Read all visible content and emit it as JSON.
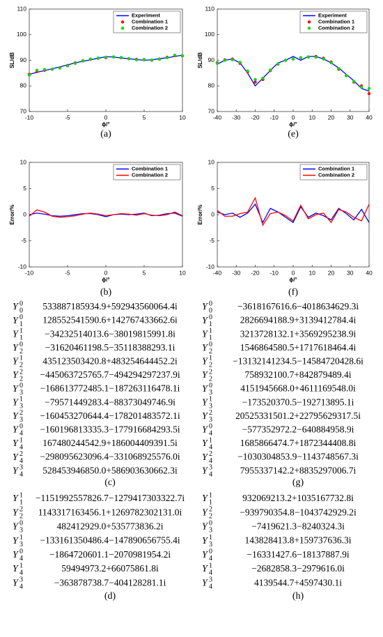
{
  "chart_data": [
    {
      "type": "line",
      "caption": "(a)",
      "xlabel": "ϕ/°",
      "ylabel": "SL/dB",
      "xlim": [
        -10,
        10
      ],
      "ylim": [
        70,
        110
      ],
      "xticks": [
        -10,
        -5,
        0,
        5,
        10
      ],
      "yticks": [
        70,
        80,
        90,
        100,
        110
      ],
      "grid": false,
      "legend": "upper right",
      "x": [
        -10,
        -9,
        -8,
        -7,
        -6,
        -5,
        -4,
        -3,
        -2,
        -1,
        0,
        1,
        2,
        3,
        4,
        5,
        6,
        7,
        8,
        9,
        10
      ],
      "series": [
        {
          "name": "Experiment",
          "color": "#0000ff",
          "style": "line",
          "values": [
            84.5,
            85.3,
            86.0,
            86.7,
            87.4,
            88.2,
            89.0,
            89.6,
            90.2,
            90.8,
            91.4,
            91.3,
            90.9,
            90.6,
            90.3,
            90.0,
            90.2,
            90.6,
            91.0,
            91.5,
            92.0
          ]
        },
        {
          "name": "Combination 1",
          "color": "#ff0000",
          "style": "markers",
          "values": [
            84.5,
            85.6,
            86.1,
            86.5,
            87.1,
            88.0,
            89.0,
            89.8,
            90.4,
            90.8,
            91.0,
            91.3,
            91.0,
            90.6,
            90.4,
            90.3,
            90.0,
            90.5,
            91.2,
            91.8,
            91.7
          ]
        },
        {
          "name": "Combination 2",
          "color": "#00dd00",
          "style": "markers",
          "values": [
            84.2,
            86.1,
            86.4,
            86.5,
            87.0,
            87.8,
            88.8,
            89.7,
            90.5,
            90.9,
            91.2,
            91.3,
            91.1,
            90.7,
            90.2,
            90.2,
            90.1,
            90.4,
            91.0,
            92.0,
            91.8
          ]
        }
      ]
    },
    {
      "type": "line",
      "caption": "(e)",
      "xlabel": "ϕ/°",
      "ylabel": "SL/dB",
      "xlim": [
        -40,
        40
      ],
      "ylim": [
        70,
        110
      ],
      "xticks": [
        -40,
        -30,
        -20,
        -10,
        0,
        10,
        20,
        30,
        40
      ],
      "yticks": [
        70,
        80,
        90,
        100,
        110
      ],
      "grid": false,
      "legend": "upper right",
      "x": [
        -40,
        -36,
        -32,
        -28,
        -24,
        -20,
        -16,
        -12,
        -8,
        -4,
        0,
        4,
        8,
        12,
        16,
        20,
        24,
        28,
        32,
        36,
        40
      ],
      "series": [
        {
          "name": "Experiment",
          "color": "#0000ff",
          "style": "line",
          "values": [
            88.5,
            90.0,
            90.5,
            89.0,
            85.0,
            80.0,
            83.0,
            86.0,
            89.0,
            90.0,
            91.5,
            90.0,
            91.5,
            91.5,
            90.5,
            89.0,
            87.0,
            84.5,
            82.0,
            79.0,
            78.0
          ]
        },
        {
          "name": "Combination 1",
          "color": "#ff0000",
          "style": "markers",
          "values": [
            89.0,
            90.2,
            90.5,
            88.8,
            85.5,
            81.5,
            82.5,
            86.0,
            88.5,
            90.0,
            90.5,
            91.0,
            91.3,
            91.5,
            90.8,
            89.3,
            86.5,
            84.0,
            81.5,
            80.0,
            77.0
          ]
        },
        {
          "name": "Combination 2",
          "color": "#00dd00",
          "style": "markers",
          "values": [
            88.8,
            90.0,
            90.2,
            89.2,
            85.8,
            82.5,
            83.0,
            86.2,
            88.6,
            90.0,
            90.5,
            91.0,
            91.3,
            91.2,
            90.5,
            89.0,
            86.8,
            84.0,
            81.8,
            79.5,
            79.0
          ]
        }
      ]
    },
    {
      "type": "line",
      "caption": "(b)",
      "xlabel": "ϕ/°",
      "ylabel": "Error/%",
      "xlim": [
        -10,
        10
      ],
      "ylim": [
        -10,
        10
      ],
      "xticks": [
        -10,
        -5,
        0,
        5,
        10
      ],
      "yticks": [
        -10,
        -5,
        0,
        5,
        10
      ],
      "grid": false,
      "legend": "upper right",
      "x": [
        -10,
        -9,
        -8,
        -7,
        -6,
        -5,
        -4,
        -3,
        -2,
        -1,
        0,
        1,
        2,
        3,
        4,
        5,
        6,
        7,
        8,
        9,
        10
      ],
      "series": [
        {
          "name": "Combination 1",
          "color": "#0000ff",
          "style": "line",
          "values": [
            0,
            0.3,
            0.1,
            -0.2,
            -0.3,
            -0.2,
            0,
            0.2,
            0.2,
            0,
            -0.4,
            0,
            0.1,
            0,
            0.1,
            0.3,
            -0.2,
            -0.1,
            0.2,
            0.3,
            -0.3
          ]
        },
        {
          "name": "Combination 2",
          "color": "#ff0000",
          "style": "line",
          "values": [
            -0.3,
            0.9,
            0.5,
            -0.3,
            -0.5,
            -0.4,
            -0.2,
            0.1,
            0.3,
            0.1,
            -0.2,
            0,
            0.2,
            0.1,
            -0.1,
            0.2,
            -0.1,
            -0.2,
            0,
            0.5,
            -0.2
          ]
        }
      ]
    },
    {
      "type": "line",
      "caption": "(f)",
      "xlabel": "ϕ/°",
      "ylabel": "Error/%",
      "xlim": [
        -40,
        40
      ],
      "ylim": [
        -10,
        10
      ],
      "xticks": [
        -40,
        -30,
        -20,
        -10,
        0,
        10,
        20,
        30,
        40
      ],
      "yticks": [
        -10,
        -5,
        0,
        5,
        10
      ],
      "grid": false,
      "legend": "upper right",
      "x": [
        -40,
        -36,
        -32,
        -28,
        -24,
        -20,
        -16,
        -12,
        -8,
        -4,
        0,
        4,
        8,
        12,
        16,
        20,
        24,
        28,
        32,
        36,
        40
      ],
      "series": [
        {
          "name": "Combination 1",
          "color": "#0000ff",
          "style": "line",
          "values": [
            0.5,
            0,
            0.3,
            -0.5,
            0.3,
            2.0,
            -1.5,
            1.2,
            0.5,
            -0.5,
            -1.5,
            1.5,
            -0.5,
            0.3,
            -0.2,
            -1.0,
            1.2,
            0.2,
            -1.0,
            1.0,
            -1.5
          ]
        },
        {
          "name": "Combination 2",
          "color": "#ff0000",
          "style": "line",
          "values": [
            0.8,
            -0.3,
            -0.3,
            0.2,
            0.5,
            3.2,
            -2.0,
            0.2,
            0.5,
            -0.2,
            -1.2,
            1.8,
            -0.8,
            0,
            0.3,
            -1.5,
            1.0,
            0.5,
            -0.5,
            -1.2,
            2.0
          ]
        }
      ]
    }
  ],
  "tables": [
    {
      "caption": "(c)",
      "rows": [
        {
          "symbol": "Y",
          "sub": "0",
          "sup": "0",
          "value": "533887185934.9+592943560064.4i"
        },
        {
          "symbol": "Y",
          "sub": "1",
          "sup": "0",
          "value": "128552541590.6+142767433662.6i"
        },
        {
          "symbol": "Y",
          "sub": "1",
          "sup": "1",
          "value": "−34232514013.6−38019815991.8i"
        },
        {
          "symbol": "Y",
          "sub": "2",
          "sup": "0",
          "value": "−31620461198.5−35118388293.1i"
        },
        {
          "symbol": "Y",
          "sub": "2",
          "sup": "1",
          "value": "435123503420.8+483254644452.2i"
        },
        {
          "symbol": "Y",
          "sub": "2",
          "sup": "2",
          "value": "−445063725765.7−494294297237.9i"
        },
        {
          "symbol": "Y",
          "sub": "3",
          "sup": "0",
          "value": "−168613772485.1−187263116478.1i"
        },
        {
          "symbol": "Y",
          "sub": "3",
          "sup": "1",
          "value": "−79571449283.4−88373049746.9i"
        },
        {
          "symbol": "Y",
          "sub": "3",
          "sup": "2",
          "value": "−160453270644.4−178201483572.1i"
        },
        {
          "symbol": "Y",
          "sub": "4",
          "sup": "0",
          "value": "−160196813335.3−177916684293.5i"
        },
        {
          "symbol": "Y",
          "sub": "4",
          "sup": "1",
          "value": "167480244542.9+186004409391.5i"
        },
        {
          "symbol": "Y",
          "sub": "4",
          "sup": "2",
          "value": "−298095623096.4−331068925576.0i"
        },
        {
          "symbol": "Y",
          "sub": "4",
          "sup": "3",
          "value": "528453946850.0+586903630662.3i"
        }
      ]
    },
    {
      "caption": "(g)",
      "rows": [
        {
          "symbol": "Y",
          "sub": "0",
          "sup": "0",
          "value": "−3618167616.6−4018634629.3i"
        },
        {
          "symbol": "Y",
          "sub": "1",
          "sup": "0",
          "value": "2826694188.9+3139412784.4i"
        },
        {
          "symbol": "Y",
          "sub": "1",
          "sup": "1",
          "value": "3213728132.1+3569295238.9i"
        },
        {
          "symbol": "Y",
          "sub": "2",
          "sup": "0",
          "value": "1546864580.5+1717618464.4i"
        },
        {
          "symbol": "Y",
          "sub": "2",
          "sup": "1",
          "value": "−13132141234.5−14584720428.6i"
        },
        {
          "symbol": "Y",
          "sub": "2",
          "sup": "2",
          "value": "758932100.7+842879489.4i"
        },
        {
          "symbol": "Y",
          "sub": "3",
          "sup": "0",
          "value": "4151945668.0+4611169548.0i"
        },
        {
          "symbol": "Y",
          "sub": "3",
          "sup": "1",
          "value": "−173520370.5−192713895.1i"
        },
        {
          "symbol": "Y",
          "sub": "3",
          "sup": "2",
          "value": "20525331501.2+22795629317.5i"
        },
        {
          "symbol": "Y",
          "sub": "4",
          "sup": "0",
          "value": "−577352972.2−640884958.9i"
        },
        {
          "symbol": "Y",
          "sub": "4",
          "sup": "1",
          "value": "1685866474.7+1872344408.8i"
        },
        {
          "symbol": "Y",
          "sub": "4",
          "sup": "2",
          "value": "−1030304853.9−1143748567.3i"
        },
        {
          "symbol": "Y",
          "sub": "4",
          "sup": "3",
          "value": "7955337142.2+8835297006.7i"
        }
      ]
    },
    {
      "caption": "(d)",
      "rows": [
        {
          "symbol": "Y",
          "sub": "1",
          "sup": "1",
          "value": "−1151992557826.7−1279417303322.7i"
        },
        {
          "symbol": "Y",
          "sub": "2",
          "sup": "2",
          "value": "1143317163456.1+1269782302131.0i"
        },
        {
          "symbol": "Y",
          "sub": "3",
          "sup": "0",
          "value": "482412929.0+535773836.2i"
        },
        {
          "symbol": "Y",
          "sub": "3",
          "sup": "1",
          "value": "−133161350486.4−147890656755.4i"
        },
        {
          "symbol": "Y",
          "sub": "4",
          "sup": "0",
          "value": "−1864720601.1−2070981954.2i"
        },
        {
          "symbol": "Y",
          "sub": "4",
          "sup": "1",
          "value": "59494973.2+66075861.8i"
        },
        {
          "symbol": "Y",
          "sub": "4",
          "sup": "3",
          "value": "−363878738.7−404128281.1i"
        }
      ]
    },
    {
      "caption": "(h)",
      "rows": [
        {
          "symbol": "Y",
          "sub": "1",
          "sup": "1",
          "value": "932069213.2+1035167732.8i"
        },
        {
          "symbol": "Y",
          "sub": "2",
          "sup": "2",
          "value": "−939790354.8−1043742929.2i"
        },
        {
          "symbol": "Y",
          "sub": "3",
          "sup": "0",
          "value": "−7419621.3−8240324.3i"
        },
        {
          "symbol": "Y",
          "sub": "3",
          "sup": "1",
          "value": "143828413.8+159737636.3i"
        },
        {
          "symbol": "Y",
          "sub": "4",
          "sup": "0",
          "value": "−16331427.6−18137887.9i"
        },
        {
          "symbol": "Y",
          "sub": "4",
          "sup": "1",
          "value": "−2682858.3−2979616.0i"
        },
        {
          "symbol": "Y",
          "sub": "4",
          "sup": "3",
          "value": "4139544.7+4597430.1i"
        }
      ]
    }
  ]
}
